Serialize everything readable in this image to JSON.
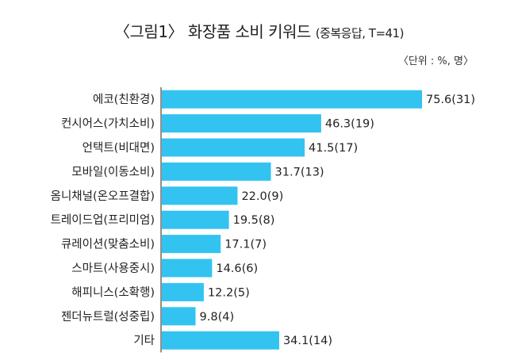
{
  "chart_data": {
    "type": "bar",
    "orientation": "horizontal",
    "title": "〈그림1〉 화장품 소비 키워드",
    "subtitle": "(중복응답, T=41)",
    "unit_note": "〈단위 : %, 명〉",
    "categories": [
      "에코(친환경)",
      "컨시어스(가치소비)",
      "언택트(비대면)",
      "모바일(이동소비)",
      "옴니채널(온오프결합)",
      "트레이드업(프리미엄)",
      "큐레이션(맞춤소비)",
      "스마트(사용중시)",
      "해피니스(소확행)",
      "젠더뉴트럴(성중립)",
      "기타"
    ],
    "values": [
      75.6,
      46.3,
      41.5,
      31.7,
      22.0,
      19.5,
      17.1,
      14.6,
      12.2,
      9.8,
      34.1
    ],
    "counts": [
      31,
      19,
      17,
      13,
      9,
      8,
      7,
      6,
      5,
      4,
      14
    ],
    "value_labels": [
      "75.6(31)",
      "46.3(19)",
      "41.5(17)",
      "31.7(13)",
      "22.0(9)",
      "19.5(8)",
      "17.1(7)",
      "14.6(6)",
      "12.2(5)",
      "9.8(4)",
      "34.1(14)"
    ],
    "xlim": [
      0,
      75.6
    ],
    "grid": false,
    "legend": "none",
    "colors": {
      "bar": "#33C3F0",
      "axis": "#222222"
    }
  }
}
